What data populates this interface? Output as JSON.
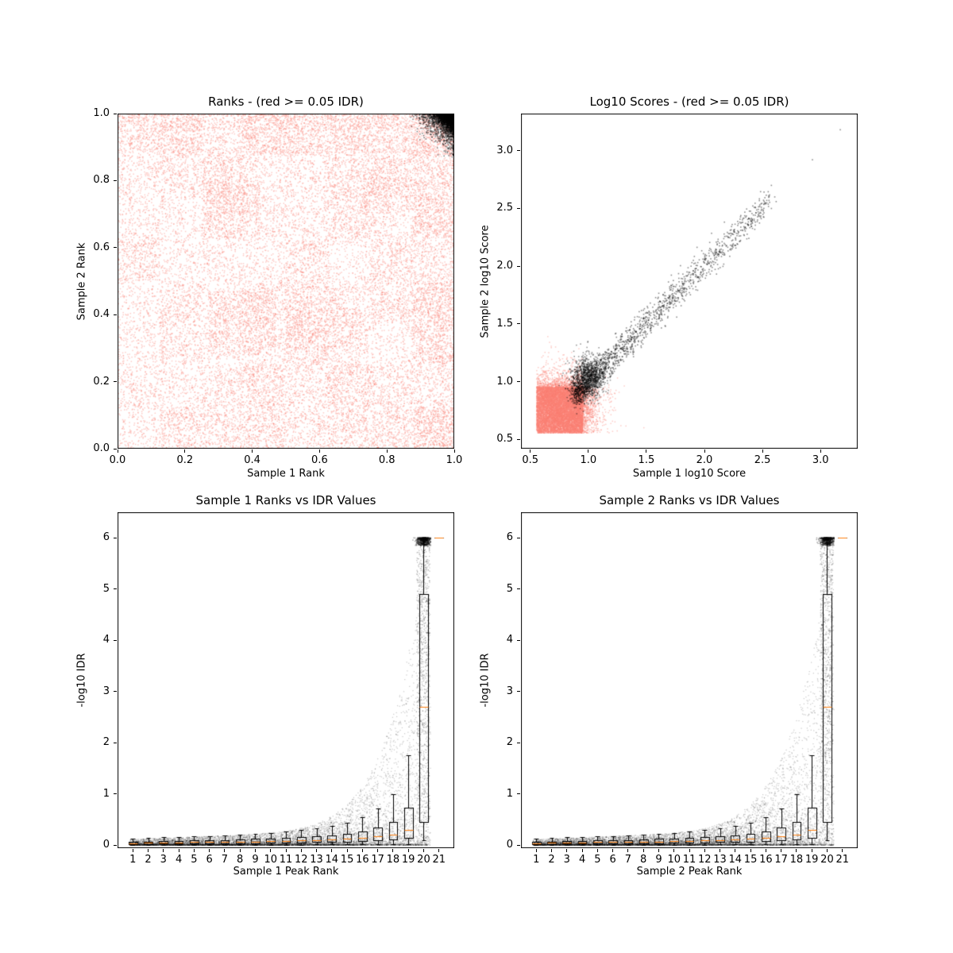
{
  "figure": {
    "background": "#ffffff",
    "colors": {
      "nonsignificant_points": "#FA8072",
      "significant_points": "#000000",
      "boxplot_line": "#000000",
      "boxplot_median": "#FF7F0E",
      "axes": "#000000"
    }
  },
  "chart_data": [
    {
      "id": "ranks-scatter",
      "type": "scatter",
      "title": "Ranks - (red >= 0.05 IDR)",
      "xlabel": "Sample 1 Rank",
      "ylabel": "Sample 2 Rank",
      "xlim": [
        0.0,
        1.0
      ],
      "ylim": [
        0.0,
        1.0
      ],
      "xticks": [
        0.0,
        0.2,
        0.4,
        0.6,
        0.8,
        1.0
      ],
      "xtick_labels": [
        "0.0",
        "0.2",
        "0.4",
        "0.6",
        "0.8",
        "1.0"
      ],
      "yticks": [
        0.0,
        0.2,
        0.4,
        0.6,
        0.8,
        1.0
      ],
      "ytick_labels": [
        "0.0",
        "0.2",
        "0.4",
        "0.6",
        "0.8",
        "1.0"
      ],
      "grid": false,
      "legend": "none",
      "series": [
        {
          "name": "red_points_idr_ge_0.05",
          "color": "#FA8072",
          "alpha": 0.4,
          "marker_px": 1.5,
          "count": 26000,
          "gen": {
            "kind": "patchy_uniform",
            "seed": 101,
            "grid": 8,
            "base": 0.32,
            "cell_amp": 0.62,
            "stripes": {
              "fx": 43,
              "ax": 0.22,
              "fy": 29,
              "ay": 0.16
            },
            "boost_rects": [
              [
                0.27,
                0.28,
                0.2,
                0.19,
                0.45
              ],
              [
                0.27,
                0.7,
                0.15,
                0.1,
                0.4
              ],
              [
                0.72,
                0.7,
                0.09,
                0.11,
                0.4
              ],
              [
                0.5,
                0.3,
                0.23,
                0.12,
                0.3
              ],
              [
                0.0,
                0.88,
                1.0,
                0.12,
                0.18
              ],
              [
                0.88,
                0.0,
                0.12,
                1.0,
                0.18
              ],
              [
                0.0,
                0.95,
                1.0,
                0.05,
                0.15
              ]
            ]
          }
        },
        {
          "name": "black_points_idr_lt_0.05",
          "color": "#000000",
          "alpha": 0.5,
          "marker_px": 1.5,
          "count": 3000,
          "gen": {
            "kind": "corner_exp",
            "seed": 7,
            "corner": [
              1.0,
              1.0
            ],
            "scale": 0.024,
            "cap": 0.13
          }
        }
      ]
    },
    {
      "id": "log10-scores-scatter",
      "type": "scatter",
      "title": "Log10 Scores - (red >= 0.05 IDR)",
      "xlabel": "Sample 1 log10 Score",
      "ylabel": "Sample 2 log10 Score",
      "xlim": [
        0.42,
        3.32
      ],
      "ylim": [
        0.42,
        3.32
      ],
      "xticks": [
        0.5,
        1.0,
        1.5,
        2.0,
        2.5,
        3.0
      ],
      "xtick_labels": [
        "0.5",
        "1.0",
        "1.5",
        "2.0",
        "2.5",
        "3.0"
      ],
      "yticks": [
        0.5,
        1.0,
        1.5,
        2.0,
        2.5,
        3.0
      ],
      "ytick_labels": [
        "0.5",
        "1.0",
        "1.5",
        "2.0",
        "2.5",
        "3.0"
      ],
      "grid": false,
      "legend": "none",
      "series": [
        {
          "name": "red_low_score_blob",
          "color": "#FA8072",
          "alpha": 0.4,
          "marker_px": 1.5,
          "count": 13000,
          "gen": {
            "kind": "square_blob",
            "seed": 23,
            "x0": 0.555,
            "y0": 0.555,
            "span": 0.4,
            "tail": 0.07,
            "tail_frac": 0.3
          }
        },
        {
          "name": "black_head_cluster",
          "color": "#000000",
          "alpha": 0.4,
          "marker_px": 1.6,
          "count": 900,
          "gen": {
            "kind": "gauss_blob",
            "seed": 31,
            "cx": 1.0,
            "cy": 1.05,
            "sx": 0.07,
            "sy": 0.09
          }
        },
        {
          "name": "black_diagonal_band",
          "color": "#000000",
          "alpha": 0.45,
          "marker_px": 1.6,
          "count": 1700,
          "gen": {
            "kind": "diag_band",
            "seed": 37,
            "t0": 0.9,
            "t1": 2.56,
            "pow": 2.1,
            "sx": 0.035,
            "sy": 0.06
          },
          "points": [
            [
              2.93,
              2.92
            ],
            [
              3.17,
              3.18
            ]
          ]
        }
      ]
    },
    {
      "id": "sample1-rank-vs-idr",
      "type": "scatter",
      "title": "Sample 1 Ranks vs IDR Values",
      "xlabel": "Sample 1 Peak Rank",
      "ylabel": "-log10 IDR",
      "xlim": [
        0.0,
        22.0
      ],
      "ylim": [
        -0.06,
        6.5
      ],
      "xticks": [
        1,
        2,
        3,
        4,
        5,
        6,
        7,
        8,
        9,
        10,
        11,
        12,
        13,
        14,
        15,
        16,
        17,
        18,
        19,
        20,
        21
      ],
      "xtick_labels": [
        "1",
        "2",
        "3",
        "4",
        "5",
        "6",
        "7",
        "8",
        "9",
        "10",
        "11",
        "12",
        "13",
        "14",
        "15",
        "16",
        "17",
        "18",
        "19",
        "20",
        "21"
      ],
      "yticks": [
        0,
        1,
        2,
        3,
        4,
        5,
        6
      ],
      "ytick_labels": [
        "0",
        "1",
        "2",
        "3",
        "4",
        "5",
        "6"
      ],
      "grid": false,
      "legend": "none",
      "series": [
        {
          "name": "idr_swarm",
          "color": "#000000",
          "alpha": 0.2,
          "marker_px": 1.3,
          "count": 9000,
          "gen": {
            "kind": "idr_wedge",
            "seed": 53,
            "x0": 0.8,
            "x1": 20.45,
            "floor_a": 0.1,
            "floor_b": 0.012,
            "amp": 6,
            "xs": 20.4,
            "pw": 8,
            "cap": 6,
            "upow": 3
          }
        },
        {
          "name": "top_rank_column",
          "color": "#000000",
          "alpha": 0.25,
          "marker_px": 1.3,
          "count": 800,
          "gen": {
            "kind": "column",
            "seed": 59,
            "x0": 19.55,
            "x1": 20.4,
            "ymax": 6,
            "ypow": 0.65
          }
        },
        {
          "name": "capped_at_6_cluster",
          "color": "#000000",
          "alpha": 0.35,
          "marker_px": 1.5,
          "count": 600,
          "gen": {
            "kind": "cap_cluster",
            "seed": 61,
            "cx": 20.0,
            "sx": 0.22,
            "xmin": 19.2,
            "xmax": 20.45,
            "y": 6,
            "dip": 0.15
          }
        }
      ],
      "boxplot": {
        "width": 0.56,
        "cap": 0.3,
        "line_color": "#000000",
        "median_color": "#FF7F0E",
        "stats": [
          [
            1,
            0.0,
            0.02,
            0.04,
            0.07,
            0.13
          ],
          [
            2,
            0.0,
            0.02,
            0.05,
            0.07,
            0.14
          ],
          [
            3,
            0.0,
            0.03,
            0.05,
            0.08,
            0.15
          ],
          [
            4,
            0.0,
            0.03,
            0.05,
            0.08,
            0.16
          ],
          [
            5,
            0.0,
            0.03,
            0.06,
            0.09,
            0.17
          ],
          [
            6,
            0.0,
            0.03,
            0.06,
            0.09,
            0.18
          ],
          [
            7,
            0.0,
            0.04,
            0.06,
            0.1,
            0.19
          ],
          [
            8,
            0.0,
            0.04,
            0.07,
            0.11,
            0.21
          ],
          [
            9,
            0.0,
            0.04,
            0.07,
            0.12,
            0.22
          ],
          [
            10,
            0.0,
            0.05,
            0.08,
            0.13,
            0.24
          ],
          [
            11,
            0.0,
            0.05,
            0.08,
            0.14,
            0.27
          ],
          [
            12,
            0.0,
            0.05,
            0.09,
            0.15,
            0.3
          ],
          [
            13,
            0.01,
            0.06,
            0.1,
            0.17,
            0.33
          ],
          [
            14,
            0.01,
            0.06,
            0.11,
            0.19,
            0.38
          ],
          [
            15,
            0.01,
            0.07,
            0.12,
            0.22,
            0.44
          ],
          [
            16,
            0.01,
            0.08,
            0.14,
            0.27,
            0.55
          ],
          [
            17,
            0.01,
            0.09,
            0.17,
            0.34,
            0.72
          ],
          [
            18,
            0.01,
            0.11,
            0.21,
            0.45,
            1.0
          ],
          [
            19,
            0.02,
            0.14,
            0.3,
            0.73,
            1.75
          ],
          [
            20,
            0.1,
            0.45,
            2.7,
            4.9,
            6.0
          ],
          [
            21,
            6.0,
            6.0,
            6.0,
            6.0,
            6.0
          ]
        ]
      }
    },
    {
      "id": "sample2-rank-vs-idr",
      "type": "scatter",
      "title": "Sample 2 Ranks vs IDR Values",
      "xlabel": "Sample 2 Peak Rank",
      "ylabel": "-log10 IDR",
      "xlim": [
        0.0,
        22.0
      ],
      "ylim": [
        -0.06,
        6.5
      ],
      "xticks": [
        1,
        2,
        3,
        4,
        5,
        6,
        7,
        8,
        9,
        10,
        11,
        12,
        13,
        14,
        15,
        16,
        17,
        18,
        19,
        20,
        21
      ],
      "xtick_labels": [
        "1",
        "2",
        "3",
        "4",
        "5",
        "6",
        "7",
        "8",
        "9",
        "10",
        "11",
        "12",
        "13",
        "14",
        "15",
        "16",
        "17",
        "18",
        "19",
        "20",
        "21"
      ],
      "yticks": [
        0,
        1,
        2,
        3,
        4,
        5,
        6
      ],
      "ytick_labels": [
        "0",
        "1",
        "2",
        "3",
        "4",
        "5",
        "6"
      ],
      "grid": false,
      "legend": "none",
      "series": [
        {
          "name": "idr_swarm",
          "color": "#000000",
          "alpha": 0.2,
          "marker_px": 1.3,
          "count": 9000,
          "gen": {
            "kind": "idr_wedge",
            "seed": 71,
            "x0": 0.8,
            "x1": 20.45,
            "floor_a": 0.1,
            "floor_b": 0.012,
            "amp": 6,
            "xs": 20.4,
            "pw": 8,
            "cap": 6,
            "upow": 3
          }
        },
        {
          "name": "top_rank_column",
          "color": "#000000",
          "alpha": 0.25,
          "marker_px": 1.3,
          "count": 800,
          "gen": {
            "kind": "column",
            "seed": 73,
            "x0": 19.55,
            "x1": 20.4,
            "ymax": 6,
            "ypow": 0.65
          }
        },
        {
          "name": "capped_at_6_cluster",
          "color": "#000000",
          "alpha": 0.35,
          "marker_px": 1.5,
          "count": 600,
          "gen": {
            "kind": "cap_cluster",
            "seed": 79,
            "cx": 20.0,
            "sx": 0.22,
            "xmin": 19.2,
            "xmax": 20.45,
            "y": 6,
            "dip": 0.15
          }
        }
      ],
      "boxplot": {
        "width": 0.56,
        "cap": 0.3,
        "line_color": "#000000",
        "median_color": "#FF7F0E",
        "stats": [
          [
            1,
            0.0,
            0.02,
            0.04,
            0.07,
            0.13
          ],
          [
            2,
            0.0,
            0.02,
            0.05,
            0.07,
            0.14
          ],
          [
            3,
            0.0,
            0.03,
            0.05,
            0.08,
            0.15
          ],
          [
            4,
            0.0,
            0.03,
            0.05,
            0.08,
            0.16
          ],
          [
            5,
            0.0,
            0.03,
            0.06,
            0.09,
            0.17
          ],
          [
            6,
            0.0,
            0.03,
            0.06,
            0.09,
            0.18
          ],
          [
            7,
            0.0,
            0.04,
            0.06,
            0.1,
            0.19
          ],
          [
            8,
            0.0,
            0.04,
            0.07,
            0.11,
            0.21
          ],
          [
            9,
            0.0,
            0.04,
            0.07,
            0.12,
            0.22
          ],
          [
            10,
            0.0,
            0.05,
            0.08,
            0.13,
            0.24
          ],
          [
            11,
            0.0,
            0.05,
            0.08,
            0.14,
            0.27
          ],
          [
            12,
            0.0,
            0.05,
            0.09,
            0.15,
            0.3
          ],
          [
            13,
            0.01,
            0.06,
            0.1,
            0.17,
            0.33
          ],
          [
            14,
            0.01,
            0.06,
            0.11,
            0.19,
            0.38
          ],
          [
            15,
            0.01,
            0.07,
            0.12,
            0.22,
            0.44
          ],
          [
            16,
            0.01,
            0.08,
            0.14,
            0.27,
            0.55
          ],
          [
            17,
            0.01,
            0.09,
            0.17,
            0.34,
            0.72
          ],
          [
            18,
            0.01,
            0.11,
            0.21,
            0.45,
            1.0
          ],
          [
            19,
            0.02,
            0.14,
            0.3,
            0.73,
            1.75
          ],
          [
            20,
            0.1,
            0.45,
            2.7,
            4.9,
            6.0
          ],
          [
            21,
            6.0,
            6.0,
            6.0,
            6.0,
            6.0
          ]
        ]
      }
    }
  ]
}
